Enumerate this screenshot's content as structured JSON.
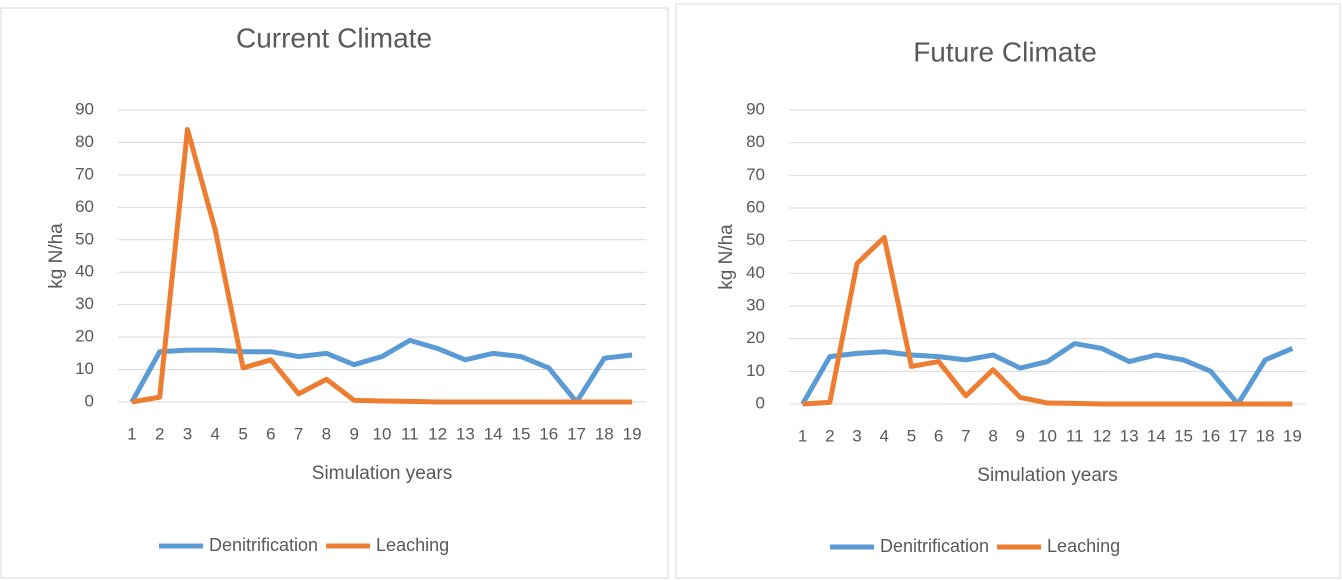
{
  "chart_data": [
    {
      "type": "line",
      "title": "Current Climate",
      "x_label": "Simulation years",
      "y_label": "kg N/ha",
      "categories": [
        "1",
        "2",
        "3",
        "4",
        "5",
        "6",
        "7",
        "8",
        "9",
        "10",
        "11",
        "12",
        "13",
        "14",
        "15",
        "16",
        "17",
        "18",
        "19"
      ],
      "series": [
        {
          "name": "Denitrification",
          "color": "#5b9bd5",
          "values": [
            0,
            15.5,
            16,
            16,
            15.5,
            15.5,
            14,
            15,
            11.5,
            14,
            19,
            16.5,
            13,
            15,
            14,
            10.5,
            0,
            13.5,
            14.5
          ]
        },
        {
          "name": "Leaching",
          "color": "#ed7d31",
          "values": [
            0,
            1.5,
            84,
            53,
            10.5,
            13,
            2.5,
            7,
            0.5,
            0.3,
            0.2,
            0,
            0,
            0,
            0,
            0,
            0,
            0,
            0
          ]
        }
      ],
      "ylim": [
        0,
        90
      ],
      "yticks": [
        0,
        10,
        20,
        30,
        40,
        50,
        60,
        70,
        80,
        90
      ],
      "grid": true,
      "legend": "bottom"
    },
    {
      "type": "line",
      "title": "Future Climate",
      "x_label": "Simulation years",
      "y_label": "kg N/ha",
      "categories": [
        "1",
        "2",
        "3",
        "4",
        "5",
        "6",
        "7",
        "8",
        "9",
        "10",
        "11",
        "12",
        "13",
        "14",
        "15",
        "16",
        "17",
        "18",
        "19"
      ],
      "series": [
        {
          "name": "Denitrification",
          "color": "#5b9bd5",
          "values": [
            0,
            14.5,
            15.5,
            16,
            15,
            14.5,
            13.5,
            15,
            11,
            13,
            18.5,
            17,
            13,
            15,
            13.5,
            10,
            0,
            13.5,
            17
          ]
        },
        {
          "name": "Leaching",
          "color": "#ed7d31",
          "values": [
            0,
            0.5,
            43,
            51,
            11.5,
            13,
            2.5,
            10.5,
            2,
            0.3,
            0.2,
            0,
            0,
            0,
            0,
            0,
            0,
            0,
            0
          ]
        }
      ],
      "ylim": [
        0,
        90
      ],
      "yticks": [
        0,
        10,
        20,
        30,
        40,
        50,
        60,
        70,
        80,
        90
      ],
      "grid": true,
      "legend": "bottom"
    }
  ]
}
